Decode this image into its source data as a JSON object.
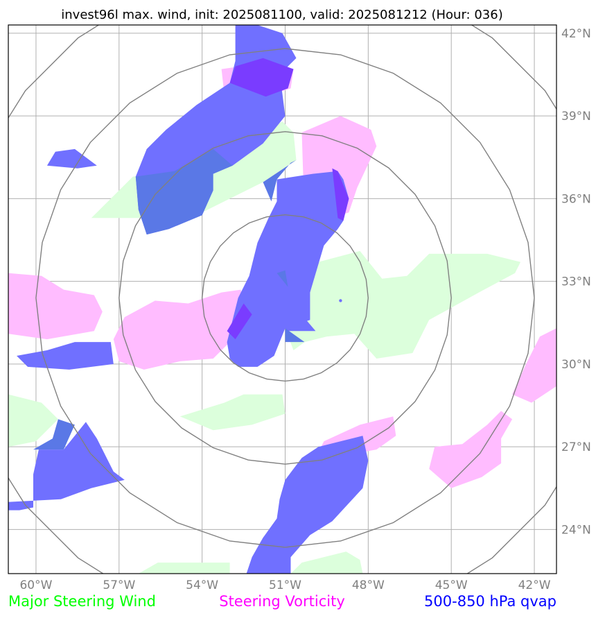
{
  "title": "invest96l max. wind, init: 2025081100, valid: 2025081212 (Hour: 036)",
  "map": {
    "lon_range": [
      -61.0,
      -41.2
    ],
    "lat_range": [
      22.4,
      42.3
    ],
    "lon_ticks": [
      {
        "value": -60,
        "label": "60°W"
      },
      {
        "value": -57,
        "label": "57°W"
      },
      {
        "value": -54,
        "label": "54°W"
      },
      {
        "value": -51,
        "label": "51°W"
      },
      {
        "value": -48,
        "label": "48°W"
      },
      {
        "value": -45,
        "label": "45°W"
      },
      {
        "value": -42,
        "label": "42°W"
      }
    ],
    "lat_ticks": [
      {
        "value": 24,
        "label": "24°N"
      },
      {
        "value": 27,
        "label": "27°N"
      },
      {
        "value": 30,
        "label": "30°N"
      },
      {
        "value": 33,
        "label": "33°N"
      },
      {
        "value": 36,
        "label": "36°N"
      },
      {
        "value": 39,
        "label": "39°N"
      },
      {
        "value": 42,
        "label": "42°N"
      }
    ],
    "gridlines": true,
    "range_rings": {
      "center": [
        -51.0,
        32.4
      ],
      "radii_deg": [
        3.0,
        6.0,
        9.0,
        12.0
      ]
    },
    "storm_center": [
      -49.0,
      32.3
    ]
  },
  "colors": {
    "steering_wind": "#00ff00",
    "steering_vorticity": "#ff00ff",
    "qvap": "#0000ff",
    "wind_fill": "#dcffdc",
    "vort_fill": "#ffbcff",
    "qvap_fill": "#7070ff",
    "overlap_wind_qvap": "#5a78e6",
    "overlap_vort_qvap": "#7a3cff",
    "grid": "#b0b0b0",
    "rings": "#808080",
    "ticks": "#808080"
  },
  "layers": {
    "steering_wind": [
      [
        [
          -58.0,
          35.3
        ],
        [
          -56.5,
          36.8
        ],
        [
          -54.8,
          37.0
        ],
        [
          -53.6,
          37.8
        ],
        [
          -52.8,
          38.1
        ],
        [
          -51.8,
          38.4
        ],
        [
          -51.1,
          38.8
        ],
        [
          -50.7,
          38.4
        ],
        [
          -50.6,
          37.4
        ],
        [
          -51.8,
          36.6
        ],
        [
          -53.2,
          35.9
        ],
        [
          -54.2,
          35.4
        ],
        [
          -55.8,
          35.3
        ]
      ],
      [
        [
          -51.0,
          33.2
        ],
        [
          -49.8,
          33.7
        ],
        [
          -48.3,
          34.1
        ],
        [
          -47.5,
          33.1
        ],
        [
          -46.6,
          33.2
        ],
        [
          -45.8,
          34.0
        ],
        [
          -43.7,
          34.0
        ],
        [
          -42.5,
          33.7
        ],
        [
          -42.7,
          33.3
        ],
        [
          -44.0,
          32.6
        ],
        [
          -45.8,
          31.6
        ],
        [
          -46.4,
          30.4
        ],
        [
          -47.7,
          30.2
        ],
        [
          -48.5,
          31.1
        ],
        [
          -49.5,
          31.0
        ],
        [
          -50.3,
          30.8
        ],
        [
          -50.7,
          30.5
        ],
        [
          -51.0,
          31.3
        ]
      ],
      [
        [
          -61.0,
          28.9
        ],
        [
          -59.8,
          28.6
        ],
        [
          -59.2,
          28.0
        ],
        [
          -60.0,
          27.2
        ],
        [
          -61.0,
          27.0
        ]
      ],
      [
        [
          -54.8,
          28.1
        ],
        [
          -53.2,
          28.6
        ],
        [
          -52.5,
          28.9
        ],
        [
          -51.1,
          28.9
        ],
        [
          -51.0,
          28.2
        ],
        [
          -52.2,
          27.8
        ],
        [
          -53.6,
          27.6
        ]
      ],
      [
        [
          -56.3,
          22.4
        ],
        [
          -55.6,
          22.8
        ],
        [
          -53.0,
          22.8
        ],
        [
          -53.0,
          22.4
        ]
      ],
      [
        [
          -50.8,
          22.4
        ],
        [
          -50.4,
          22.8
        ],
        [
          -48.8,
          23.2
        ],
        [
          -48.3,
          22.9
        ],
        [
          -48.2,
          22.4
        ]
      ]
    ],
    "steering_vorticity": [
      [
        [
          -53.3,
          40.7
        ],
        [
          -52.6,
          40.8
        ],
        [
          -51.8,
          41.1
        ],
        [
          -50.7,
          40.7
        ],
        [
          -50.8,
          40.0
        ],
        [
          -51.7,
          39.7
        ],
        [
          -53.2,
          39.8
        ]
      ],
      [
        [
          -50.4,
          38.4
        ],
        [
          -49.0,
          39.0
        ],
        [
          -47.9,
          38.5
        ],
        [
          -47.7,
          37.9
        ],
        [
          -48.4,
          36.4
        ],
        [
          -48.7,
          35.5
        ],
        [
          -49.3,
          35.3
        ],
        [
          -50.3,
          35.2
        ]
      ],
      [
        [
          -61.0,
          33.3
        ],
        [
          -59.8,
          33.2
        ],
        [
          -59.0,
          32.7
        ],
        [
          -57.9,
          32.5
        ],
        [
          -57.6,
          31.9
        ],
        [
          -57.9,
          31.2
        ],
        [
          -59.6,
          30.9
        ],
        [
          -61.0,
          31.1
        ]
      ],
      [
        [
          -56.8,
          31.7
        ],
        [
          -55.7,
          32.3
        ],
        [
          -54.5,
          32.2
        ],
        [
          -53.3,
          32.6
        ],
        [
          -52.6,
          32.7
        ],
        [
          -52.4,
          31.0
        ],
        [
          -53.1,
          30.7
        ],
        [
          -53.6,
          30.2
        ],
        [
          -54.8,
          30.1
        ],
        [
          -56.1,
          29.8
        ],
        [
          -57.0,
          30.1
        ],
        [
          -57.2,
          30.9
        ]
      ],
      [
        [
          -49.6,
          27.2
        ],
        [
          -48.3,
          27.8
        ],
        [
          -47.1,
          28.1
        ],
        [
          -47.0,
          27.4
        ],
        [
          -47.7,
          26.9
        ],
        [
          -48.8,
          26.7
        ],
        [
          -49.8,
          26.8
        ]
      ],
      [
        [
          -44.6,
          27.1
        ],
        [
          -43.7,
          27.8
        ],
        [
          -43.2,
          28.3
        ],
        [
          -42.8,
          28.0
        ],
        [
          -43.2,
          27.3
        ],
        [
          -43.2,
          26.4
        ],
        [
          -43.9,
          25.9
        ],
        [
          -45.0,
          25.5
        ],
        [
          -45.8,
          26.2
        ],
        [
          -45.6,
          27.0
        ]
      ],
      [
        [
          -42.8,
          28.9
        ],
        [
          -42.3,
          30.0
        ],
        [
          -41.8,
          31.0
        ],
        [
          -41.2,
          31.3
        ],
        [
          -41.2,
          29.2
        ],
        [
          -42.1,
          28.6
        ]
      ]
    ],
    "qvap": [
      [
        [
          -53.0,
          40.2
        ],
        [
          -52.8,
          41.0
        ],
        [
          -52.8,
          42.3
        ],
        [
          -52.0,
          42.3
        ],
        [
          -51.1,
          42.0
        ],
        [
          -50.6,
          41.1
        ],
        [
          -51.2,
          40.5
        ],
        [
          -51.1,
          39.8
        ],
        [
          -51.0,
          39.0
        ],
        [
          -51.8,
          38.0
        ],
        [
          -52.9,
          37.2
        ],
        [
          -53.6,
          36.9
        ],
        [
          -53.6,
          36.3
        ],
        [
          -54.0,
          35.4
        ],
        [
          -55.2,
          34.9
        ],
        [
          -56.0,
          34.7
        ],
        [
          -56.3,
          35.6
        ],
        [
          -56.4,
          36.8
        ],
        [
          -56.0,
          37.8
        ],
        [
          -55.3,
          38.5
        ],
        [
          -54.2,
          39.4
        ]
      ],
      [
        [
          -59.3,
          37.7
        ],
        [
          -58.6,
          37.8
        ],
        [
          -57.8,
          37.2
        ],
        [
          -58.5,
          37.1
        ],
        [
          -59.6,
          37.2
        ]
      ],
      [
        [
          -51.3,
          36.7
        ],
        [
          -50.0,
          36.9
        ],
        [
          -49.1,
          37.0
        ],
        [
          -48.9,
          36.7
        ],
        [
          -48.7,
          36.0
        ],
        [
          -48.9,
          35.2
        ],
        [
          -49.1,
          34.9
        ],
        [
          -49.6,
          34.3
        ],
        [
          -50.1,
          32.6
        ],
        [
          -50.1,
          31.6
        ],
        [
          -51.0,
          31.3
        ],
        [
          -51.4,
          30.3
        ],
        [
          -52.0,
          29.9
        ],
        [
          -52.7,
          29.9
        ],
        [
          -53.0,
          30.2
        ],
        [
          -53.1,
          30.8
        ],
        [
          -52.7,
          32.4
        ],
        [
          -52.3,
          33.2
        ],
        [
          -52.0,
          34.4
        ],
        [
          -51.6,
          35.3
        ],
        [
          -51.3,
          35.9
        ]
      ],
      [
        [
          -51.0,
          32.5
        ],
        [
          -49.9,
          31.2
        ],
        [
          -51.0,
          31.2
        ]
      ],
      [
        [
          -60.7,
          30.3
        ],
        [
          -59.6,
          30.5
        ],
        [
          -58.6,
          30.8
        ],
        [
          -57.3,
          30.8
        ],
        [
          -57.2,
          30.0
        ],
        [
          -58.8,
          29.8
        ],
        [
          -60.3,
          29.9
        ]
      ],
      [
        [
          -59.0,
          26.9
        ],
        [
          -58.2,
          27.9
        ],
        [
          -57.8,
          27.3
        ],
        [
          -57.2,
          26.1
        ],
        [
          -56.8,
          25.8
        ],
        [
          -58.0,
          25.5
        ],
        [
          -59.1,
          25.1
        ],
        [
          -61.0,
          25.0
        ],
        [
          -61.0,
          24.7
        ],
        [
          -60.6,
          24.7
        ],
        [
          -60.1,
          24.8
        ],
        [
          -60.1,
          26.0
        ],
        [
          -59.9,
          26.9
        ]
      ],
      [
        [
          -51.0,
          25.8
        ],
        [
          -50.4,
          26.6
        ],
        [
          -49.8,
          27.0
        ],
        [
          -48.2,
          27.4
        ],
        [
          -48.0,
          26.5
        ],
        [
          -48.2,
          25.5
        ],
        [
          -49.3,
          24.3
        ],
        [
          -50.1,
          23.8
        ],
        [
          -50.8,
          23.0
        ],
        [
          -50.8,
          22.4
        ],
        [
          -52.4,
          22.4
        ],
        [
          -52.2,
          23.0
        ],
        [
          -51.8,
          23.7
        ],
        [
          -51.3,
          24.4
        ],
        [
          -51.2,
          25.1
        ]
      ]
    ],
    "overlap_wind_qvap": [
      [
        [
          -56.4,
          36.8
        ],
        [
          -55.0,
          37.0
        ],
        [
          -53.6,
          37.8
        ],
        [
          -52.9,
          37.2
        ],
        [
          -53.6,
          36.9
        ],
        [
          -53.6,
          36.3
        ],
        [
          -54.0,
          35.4
        ],
        [
          -55.2,
          34.9
        ],
        [
          -56.0,
          34.7
        ],
        [
          -56.3,
          35.6
        ]
      ],
      [
        [
          -51.3,
          36.7
        ],
        [
          -50.8,
          37.3
        ],
        [
          -50.6,
          37.4
        ],
        [
          -51.8,
          36.6
        ],
        [
          -51.5,
          35.9
        ]
      ],
      [
        [
          -51.3,
          33.3
        ],
        [
          -51.0,
          33.4
        ],
        [
          -50.9,
          32.8
        ]
      ],
      [
        [
          -51.0,
          31.3
        ],
        [
          -50.3,
          30.8
        ],
        [
          -51.0,
          30.8
        ]
      ],
      [
        [
          -60.1,
          26.9
        ],
        [
          -59.4,
          27.3
        ],
        [
          -59.2,
          28.0
        ],
        [
          -58.6,
          27.8
        ],
        [
          -59.0,
          26.9
        ]
      ]
    ],
    "overlap_vort_qvap": [
      [
        [
          -53.0,
          40.2
        ],
        [
          -52.8,
          40.8
        ],
        [
          -51.8,
          41.1
        ],
        [
          -50.7,
          40.7
        ],
        [
          -50.9,
          40.0
        ],
        [
          -51.7,
          39.7
        ]
      ],
      [
        [
          -49.3,
          37.1
        ],
        [
          -49.1,
          37.0
        ],
        [
          -48.7,
          36.0
        ],
        [
          -48.9,
          35.2
        ],
        [
          -49.1,
          35.3
        ]
      ],
      [
        [
          -53.1,
          31.2
        ],
        [
          -52.5,
          32.2
        ],
        [
          -52.2,
          31.8
        ],
        [
          -52.8,
          30.9
        ]
      ]
    ]
  },
  "legend": {
    "wind_label": "Major Steering Wind",
    "vorticity_label": "Steering Vorticity",
    "qvap_label": "500-850 hPa qvap"
  }
}
